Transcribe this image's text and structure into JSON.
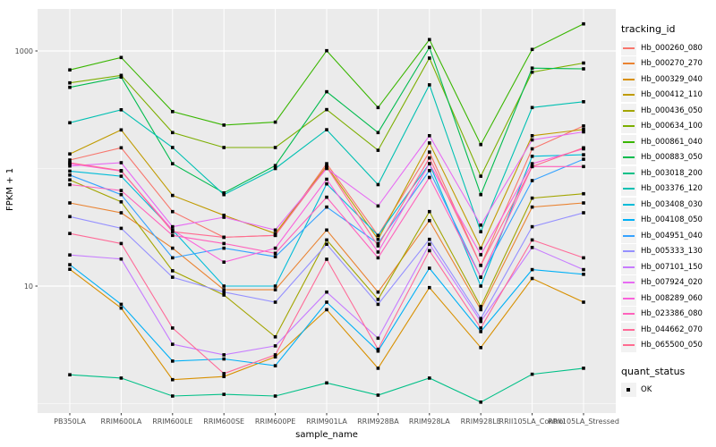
{
  "chart_data": {
    "type": "line",
    "title": "",
    "xlabel": "sample_name",
    "ylabel": "FPKM + 1",
    "y_scale": "log10",
    "y_major_ticks": [
      10,
      1000
    ],
    "y_minor_gridlines": [
      1,
      100
    ],
    "ylim": [
      0.83,
      2300
    ],
    "grid": true,
    "panel_bg": "#EBEBEB",
    "grid_color": "#FFFFFF",
    "axis_text_color": "#4D4D4D",
    "point": {
      "shape": "square",
      "color": "#000000"
    },
    "legend_title": "tracking_id",
    "legend2": {
      "title": "quant_status",
      "items": [
        "OK"
      ]
    },
    "categories": [
      "PB350LA",
      "RRIM600LA",
      "RRIM600LE",
      "RRIM600SE",
      "RRIM600PE",
      "RRIM901LA",
      "RRIM928BA",
      "RRIM928LA",
      "RRIM928LE",
      "RRII105LA_Control",
      "RRII105LA_Stressed"
    ],
    "series": [
      {
        "name": "Hb_000260_080",
        "color": "#F8766D",
        "values": [
          118,
          150,
          43,
          26,
          27,
          110,
          27,
          138,
          15,
          147,
          230
        ]
      },
      {
        "name": "Hb_000270_270",
        "color": "#EA8331",
        "values": [
          51,
          42,
          21,
          9.3,
          9.3,
          30,
          8.9,
          36,
          6.3,
          47,
          51
        ]
      },
      {
        "name": "Hb_000329_040",
        "color": "#D89000",
        "values": [
          13.9,
          6.5,
          1.6,
          1.7,
          2.5,
          6.3,
          2.0,
          9.7,
          3.0,
          11.6,
          7.3
        ]
      },
      {
        "name": "Hb_000412_110",
        "color": "#C09B00",
        "values": [
          133,
          213,
          59,
          40,
          28,
          105,
          25,
          165,
          21,
          190,
          215
        ]
      },
      {
        "name": "Hb_000436_050",
        "color": "#A3A500",
        "values": [
          80,
          52,
          13.5,
          8.4,
          3.7,
          24.7,
          7.7,
          43,
          6.7,
          56,
          61
        ]
      },
      {
        "name": "Hb_000634_100",
        "color": "#7CAE00",
        "values": [
          535,
          620,
          202,
          151,
          151,
          317,
          143,
          870,
          86,
          660,
          790
        ]
      },
      {
        "name": "Hb_000861_040",
        "color": "#39B600",
        "values": [
          690,
          880,
          305,
          234,
          248,
          1005,
          330,
          1250,
          160,
          1030,
          1700
        ]
      },
      {
        "name": "Hb_000883_050",
        "color": "#00BB4E",
        "values": [
          490,
          600,
          110,
          62,
          106,
          450,
          202,
          1070,
          60,
          715,
          705
        ]
      },
      {
        "name": "Hb_003018_200",
        "color": "#00C087",
        "values": [
          1.76,
          1.65,
          1.16,
          1.2,
          1.16,
          1.5,
          1.18,
          1.65,
          1.03,
          1.78,
          2.0
        ]
      },
      {
        "name": "Hb_003376_120",
        "color": "#00C0B2",
        "values": [
          245,
          316,
          151,
          60,
          100,
          214,
          73,
          515,
          29,
          330,
          370
        ]
      },
      {
        "name": "Hb_003408_030",
        "color": "#00BCD8",
        "values": [
          95,
          86,
          30,
          10,
          10,
          74,
          27,
          110,
          10,
          127,
          131
        ]
      },
      {
        "name": "Hb_004108_050",
        "color": "#00B0F6",
        "values": [
          15.2,
          7.0,
          2.3,
          2.4,
          2.1,
          7.3,
          2.8,
          14.2,
          4.1,
          13.8,
          12.6
        ]
      },
      {
        "name": "Hb_004951_040",
        "color": "#35A2FF",
        "values": [
          88,
          60,
          17.4,
          21,
          17.8,
          47,
          23,
          96,
          11.9,
          79,
          120
        ]
      },
      {
        "name": "Hb_005333_130",
        "color": "#9590FF",
        "values": [
          39,
          31,
          11.9,
          8.9,
          7.3,
          22.7,
          7.0,
          25,
          5.3,
          32,
          42
        ]
      },
      {
        "name": "Hb_007101_150",
        "color": "#C77CFF",
        "values": [
          18.4,
          17,
          3.2,
          2.6,
          3.1,
          8.9,
          3.6,
          22.7,
          5.0,
          21.3,
          13.8
        ]
      },
      {
        "name": "Hb_007924_020",
        "color": "#E76BF3",
        "values": [
          105,
          112,
          32,
          38.5,
          30,
          100,
          48,
          190,
          33,
          175,
          205
        ]
      },
      {
        "name": "Hb_008289_060",
        "color": "#FA62DB",
        "values": [
          110,
          95,
          30,
          16,
          21,
          81,
          19.5,
          110,
          18.5,
          110,
          147
        ]
      },
      {
        "name": "Hb_023386_080",
        "color": "#FF62BC",
        "values": [
          73,
          65,
          27,
          23,
          19,
          57,
          17.4,
          84,
          11.9,
          104,
          104
        ]
      },
      {
        "name": "Hb_044662_070",
        "color": "#FF6A98",
        "values": [
          28,
          23,
          4.4,
          1.8,
          2.6,
          16.9,
          2.9,
          20,
          4.4,
          24.7,
          17.4
        ]
      },
      {
        "name": "Hb_065500_050",
        "color": "#FF6C91",
        "values": [
          112,
          96,
          29,
          26,
          27,
          103,
          22,
          123,
          15,
          104,
          150
        ]
      }
    ]
  }
}
